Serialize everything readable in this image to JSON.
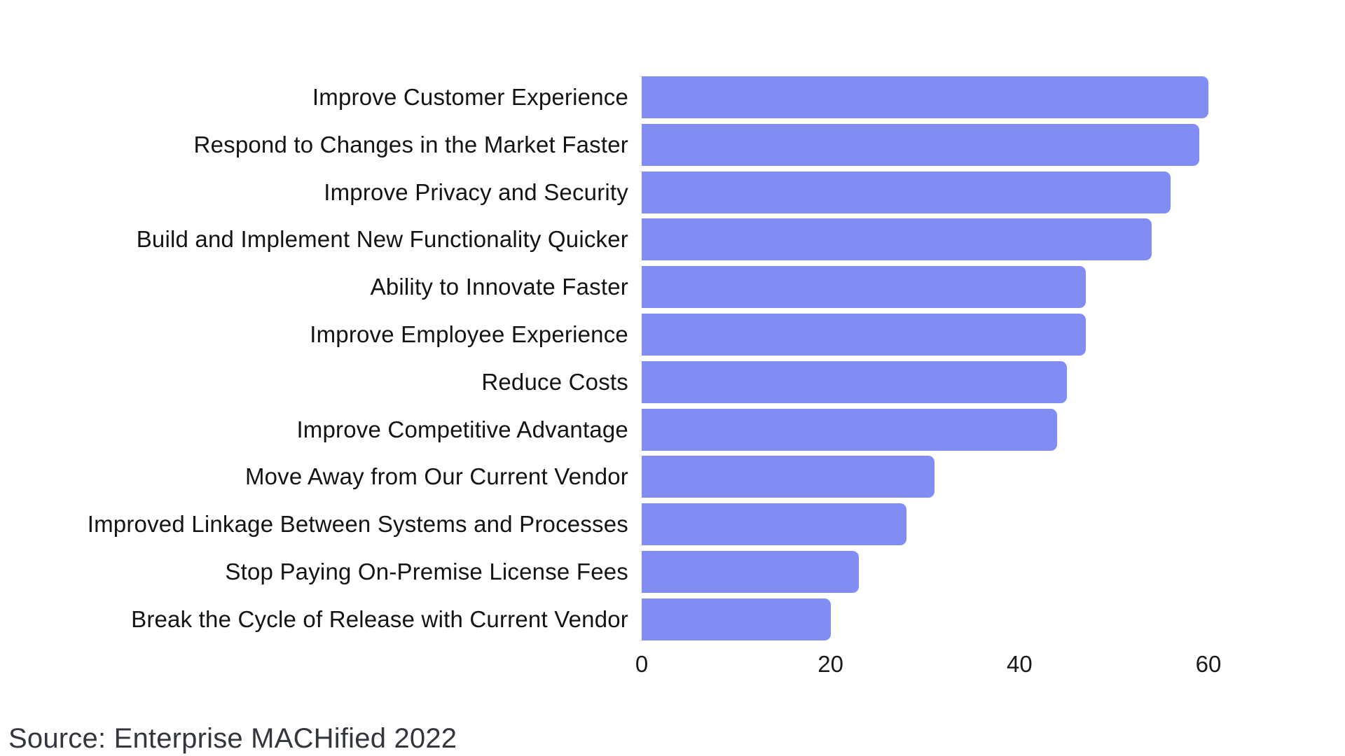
{
  "chart_data": {
    "type": "bar",
    "orientation": "horizontal",
    "title": "",
    "categories": [
      "Improve Customer Experience",
      "Respond to Changes in the Market Faster",
      "Improve Privacy and Security",
      "Build and Implement New Functionality Quicker",
      "Ability to Innovate Faster",
      "Improve Employee Experience",
      "Reduce Costs",
      "Improve Competitive Advantage",
      "Move Away from Our Current Vendor",
      "Improved Linkage Between Systems and Processes",
      "Stop Paying On-Premise License Fees",
      "Break the Cycle of Release with Current Vendor"
    ],
    "values": [
      60,
      59,
      56,
      54,
      47,
      47,
      45,
      44,
      31,
      28,
      23,
      20
    ],
    "xlabel": "",
    "ylabel": "",
    "xlim": [
      0,
      60
    ],
    "x_ticks": [
      0,
      20,
      40,
      60
    ],
    "grid": false,
    "legend": "none",
    "bar_color": "#828DF4"
  },
  "source": "Source: Enterprise MACHified 2022",
  "colors": {
    "bar": "#828DF4",
    "label_text": "#141414",
    "tick_text": "#1a1a1a",
    "source_text": "#33373d",
    "background": "#FFFFFF"
  }
}
